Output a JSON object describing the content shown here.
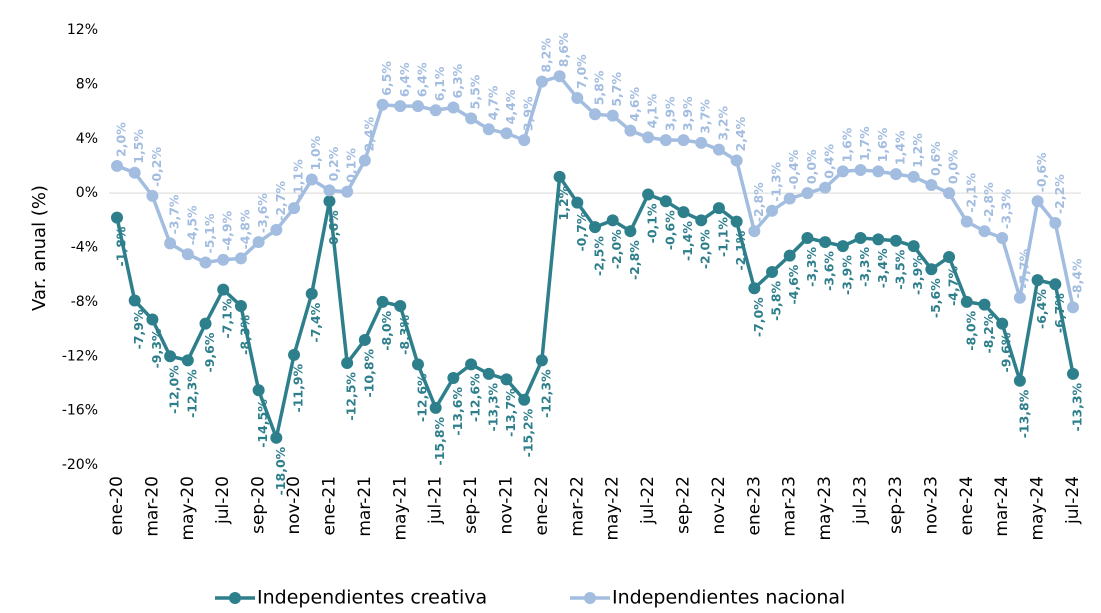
{
  "chart_data": {
    "type": "line",
    "y_label": "Var. anual (%)",
    "categories": [
      "ene-20",
      null,
      "mar-20",
      null,
      "may-20",
      null,
      "jul-20",
      null,
      "sep-20",
      null,
      "nov-20",
      null,
      "ene-21",
      null,
      "mar-21",
      null,
      "may-21",
      null,
      "jul-21",
      null,
      "sep-21",
      null,
      "nov-21",
      null,
      "ene-22",
      null,
      "mar-22",
      null,
      "may-22",
      null,
      "jul-22",
      null,
      "sep-22",
      null,
      "nov-22",
      null,
      "ene-23",
      null,
      "mar-23",
      null,
      "may-23",
      null,
      "jul-23",
      null,
      "sep-23",
      null,
      "nov-23",
      null,
      "ene-24",
      null,
      "mar-24",
      null,
      "may-24",
      null,
      "jul-24"
    ],
    "series": [
      {
        "name": "Independientes creativa",
        "color": "#2e7f8c",
        "label_side": "below",
        "values": [
          -1.8,
          -7.9,
          -9.3,
          -12.0,
          -12.3,
          -9.6,
          -7.1,
          -8.3,
          -14.5,
          -18.0,
          -11.9,
          -7.4,
          -0.6,
          -12.5,
          -10.8,
          -8.0,
          -8.3,
          -12.6,
          -15.8,
          -13.6,
          -12.6,
          -13.3,
          -13.7,
          -15.2,
          -12.3,
          1.2,
          -0.7,
          -2.5,
          -2.0,
          -2.8,
          -0.1,
          -0.6,
          -1.4,
          -2.0,
          -1.1,
          -2.1,
          -7.0,
          -5.8,
          -4.6,
          -3.3,
          -3.6,
          -3.9,
          -3.3,
          -3.4,
          -3.5,
          -3.9,
          -5.6,
          -4.7,
          -8.0,
          -8.2,
          -9.6,
          -13.8,
          -6.4,
          -6.7,
          -13.3
        ],
        "value_labels": [
          "-1,8%",
          "-7,9%",
          "-9,3%",
          "-12,0%",
          "-12,3%",
          "-9,6%",
          "-7,1%",
          "-8,3%",
          "-14,5%",
          "-18,0%",
          "-11,9%",
          "-7,4%",
          "-0,6%",
          "-12,5%",
          "-10,8%",
          "-8,0%",
          "-8,3%",
          "-12,6%",
          "-15,8%",
          "-13,6%",
          "-12,6%",
          "-13,3%",
          "-13,7%",
          "-15,2%",
          "-12,3%",
          "1,2%",
          "-0,7%",
          "-2,5%",
          "-2,0%",
          "-2,8%",
          "-0,1%",
          "-0,6%",
          "-1,4%",
          "-2,0%",
          "-1,1%",
          "-2,1%",
          "-7,0%",
          "-5,8%",
          "-4,6%",
          "-3,3%",
          "-3,6%",
          "-3,9%",
          "-3,3%",
          "-3,4%",
          "-3,5%",
          "-3,9%",
          "-5,6%",
          "-4,7%",
          "-8,0%",
          "-8,2%",
          "-9,6%",
          "-13,8%",
          "-6,4%",
          "-6,7%",
          "-13,3%"
        ]
      },
      {
        "name": "Independientes nacional",
        "color": "#a3bde0",
        "label_side": "above",
        "values": [
          2.0,
          1.5,
          -0.2,
          -3.7,
          -4.5,
          -5.1,
          -4.9,
          -4.8,
          -3.6,
          -2.7,
          -1.1,
          1.0,
          0.2,
          0.1,
          2.4,
          6.5,
          6.4,
          6.4,
          6.1,
          6.3,
          5.5,
          4.7,
          4.4,
          3.9,
          8.2,
          8.6,
          7.0,
          5.8,
          5.7,
          4.6,
          4.1,
          3.9,
          3.9,
          3.7,
          3.2,
          2.4,
          -2.8,
          -1.3,
          -0.4,
          0.0,
          0.4,
          1.6,
          1.7,
          1.6,
          1.4,
          1.2,
          0.6,
          0.0,
          -2.1,
          -2.8,
          -3.3,
          -7.7,
          -0.6,
          -2.2,
          -8.4
        ],
        "value_labels": [
          "2,0%",
          "1,5%",
          "-0,2%",
          "-3,7%",
          "-4,5%",
          "-5,1%",
          "-4,9%",
          "-4,8%",
          "-3,6%",
          "-2,7%",
          "-1,1%",
          "1,0%",
          "0,2%",
          "0,1%",
          "2,4%",
          "6,5%",
          "6,4%",
          "6,4%",
          "6,1%",
          "6,3%",
          "5,5%",
          "4,7%",
          "4,4%",
          "3,9%",
          "8,2%",
          "8,6%",
          "7,0%",
          "5,8%",
          "5,7%",
          "4,6%",
          "4,1%",
          "3,9%",
          "3,9%",
          "3,7%",
          "3,2%",
          "2,4%",
          "-2,8%",
          "-1,3%",
          "-0,4%",
          "0,0%",
          "0,4%",
          "1,6%",
          "1,7%",
          "1,6%",
          "1,4%",
          "1,2%",
          "0,6%",
          "0,0%",
          "-2,1%",
          "-2,8%",
          "-3,3%",
          "-7,7%",
          "-0,6%",
          "-2,2%",
          "-8,4%"
        ]
      }
    ],
    "ylim": [
      -20,
      12
    ],
    "yticks": [
      {
        "value": -20,
        "label": "-20%"
      },
      {
        "value": -16,
        "label": "-16%"
      },
      {
        "value": -12,
        "label": "-12%"
      },
      {
        "value": -8,
        "label": "-8%"
      },
      {
        "value": -4,
        "label": "-4%"
      },
      {
        "value": 0,
        "label": "0%"
      },
      {
        "value": 4,
        "label": "4%"
      },
      {
        "value": 8,
        "label": "8%"
      },
      {
        "value": 12,
        "label": "12%"
      }
    ],
    "legend": "bottom"
  }
}
